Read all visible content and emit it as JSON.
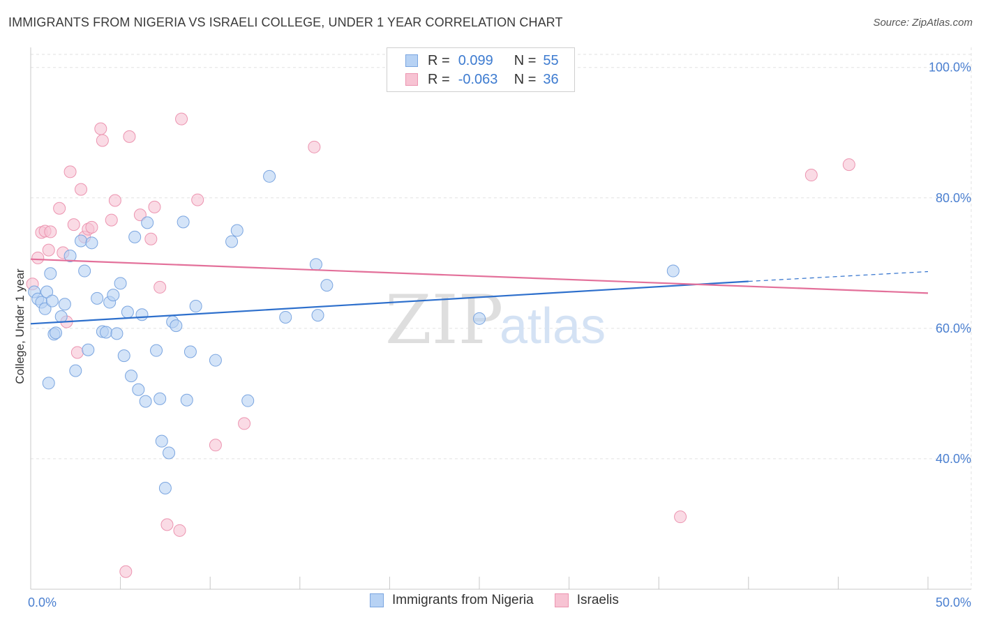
{
  "header": {
    "title": "IMMIGRANTS FROM NIGERIA VS ISRAELI COLLEGE, UNDER 1 YEAR CORRELATION CHART",
    "source": "Source: ZipAtlas.com"
  },
  "legend_top": {
    "rows": [
      {
        "r_label": "R =",
        "r_value": "0.099",
        "n_label": "N =",
        "n_value": "55"
      },
      {
        "r_label": "R =",
        "r_value": "-0.063",
        "n_label": "N =",
        "n_value": "36"
      }
    ]
  },
  "legend_bottom": {
    "items": [
      "Immigrants from Nigeria",
      "Israelis"
    ]
  },
  "watermark": {
    "zip": "ZIP",
    "atlas": "atlas"
  },
  "colors": {
    "blue_fill": "#b7d2f4",
    "blue_stroke": "#7aa5e0",
    "blue_line": "#2d6fcc",
    "pink_fill": "#f7c3d3",
    "pink_stroke": "#ec94b0",
    "pink_line": "#e3709a",
    "grid": "#e2e2e2",
    "tick_text": "#4a7fd0"
  },
  "chart_data": {
    "type": "scatter",
    "title": "IMMIGRANTS FROM NIGERIA VS ISRAELI COLLEGE, UNDER 1 YEAR CORRELATION CHART",
    "xlabel": "",
    "ylabel": "College, Under 1 year",
    "xlim": [
      0,
      50
    ],
    "ylim": [
      20,
      102
    ],
    "x_tick_labels": [
      "0.0%",
      "50.0%"
    ],
    "y_ticks": [
      40,
      60,
      80,
      100
    ],
    "y_tick_labels": [
      "40.0%",
      "60.0%",
      "80.0%",
      "100.0%"
    ],
    "grid": true,
    "legend_position": "top-center",
    "series": [
      {
        "name": "Immigrants from Nigeria",
        "color": "#b7d2f4",
        "trend": {
          "x": [
            0,
            40
          ],
          "y": [
            60.7,
            67.2
          ],
          "extended_to": [
            50,
            68.7
          ]
        },
        "points": [
          [
            0.2,
            65.6
          ],
          [
            0.4,
            64.5
          ],
          [
            0.6,
            64.0
          ],
          [
            0.8,
            63.0
          ],
          [
            0.9,
            65.6
          ],
          [
            1.0,
            51.6
          ],
          [
            1.1,
            68.4
          ],
          [
            1.2,
            64.2
          ],
          [
            1.3,
            59.1
          ],
          [
            1.4,
            59.3
          ],
          [
            1.7,
            61.8
          ],
          [
            1.9,
            63.7
          ],
          [
            2.2,
            71.1
          ],
          [
            2.5,
            53.5
          ],
          [
            2.8,
            73.4
          ],
          [
            3.0,
            68.8
          ],
          [
            3.2,
            56.7
          ],
          [
            3.4,
            73.1
          ],
          [
            3.7,
            64.6
          ],
          [
            4.0,
            59.5
          ],
          [
            4.2,
            59.4
          ],
          [
            4.4,
            64.0
          ],
          [
            4.6,
            65.1
          ],
          [
            4.8,
            59.2
          ],
          [
            5.0,
            66.9
          ],
          [
            5.2,
            55.8
          ],
          [
            5.4,
            62.5
          ],
          [
            5.6,
            52.7
          ],
          [
            5.8,
            74.0
          ],
          [
            6.0,
            50.6
          ],
          [
            6.2,
            62.1
          ],
          [
            6.4,
            48.8
          ],
          [
            6.5,
            76.2
          ],
          [
            7.0,
            56.6
          ],
          [
            7.2,
            49.2
          ],
          [
            7.3,
            42.7
          ],
          [
            7.5,
            35.5
          ],
          [
            7.7,
            40.9
          ],
          [
            7.9,
            61.0
          ],
          [
            8.1,
            60.4
          ],
          [
            8.5,
            76.3
          ],
          [
            8.7,
            49.0
          ],
          [
            8.9,
            56.4
          ],
          [
            9.2,
            63.4
          ],
          [
            10.3,
            55.1
          ],
          [
            11.2,
            73.3
          ],
          [
            11.5,
            75.0
          ],
          [
            12.1,
            48.9
          ],
          [
            13.3,
            83.3
          ],
          [
            14.2,
            61.7
          ],
          [
            15.9,
            69.8
          ],
          [
            16.5,
            66.6
          ],
          [
            16.0,
            62.0
          ],
          [
            25.0,
            61.5
          ],
          [
            35.8,
            68.8
          ]
        ]
      },
      {
        "name": "Israelis",
        "color": "#f7c3d3",
        "trend": {
          "x": [
            0,
            50
          ],
          "y": [
            70.6,
            65.4
          ]
        },
        "points": [
          [
            0.1,
            66.8
          ],
          [
            0.4,
            70.8
          ],
          [
            0.6,
            74.7
          ],
          [
            0.8,
            74.9
          ],
          [
            1.0,
            72.0
          ],
          [
            1.1,
            74.8
          ],
          [
            1.6,
            78.4
          ],
          [
            1.8,
            71.6
          ],
          [
            2.0,
            61.0
          ],
          [
            2.2,
            84.0
          ],
          [
            2.4,
            75.9
          ],
          [
            2.6,
            56.3
          ],
          [
            2.8,
            81.3
          ],
          [
            3.0,
            74.0
          ],
          [
            3.2,
            75.2
          ],
          [
            3.4,
            75.5
          ],
          [
            3.9,
            90.6
          ],
          [
            4.0,
            88.8
          ],
          [
            4.5,
            76.6
          ],
          [
            4.7,
            79.6
          ],
          [
            5.3,
            22.7
          ],
          [
            5.5,
            89.4
          ],
          [
            6.1,
            77.4
          ],
          [
            6.7,
            73.7
          ],
          [
            6.9,
            78.6
          ],
          [
            7.2,
            66.3
          ],
          [
            7.6,
            29.9
          ],
          [
            8.3,
            29.0
          ],
          [
            8.4,
            92.1
          ],
          [
            9.3,
            79.7
          ],
          [
            10.3,
            42.1
          ],
          [
            11.9,
            45.4
          ],
          [
            15.8,
            87.8
          ],
          [
            36.2,
            31.1
          ],
          [
            43.5,
            83.5
          ],
          [
            45.6,
            85.1
          ]
        ]
      }
    ]
  }
}
